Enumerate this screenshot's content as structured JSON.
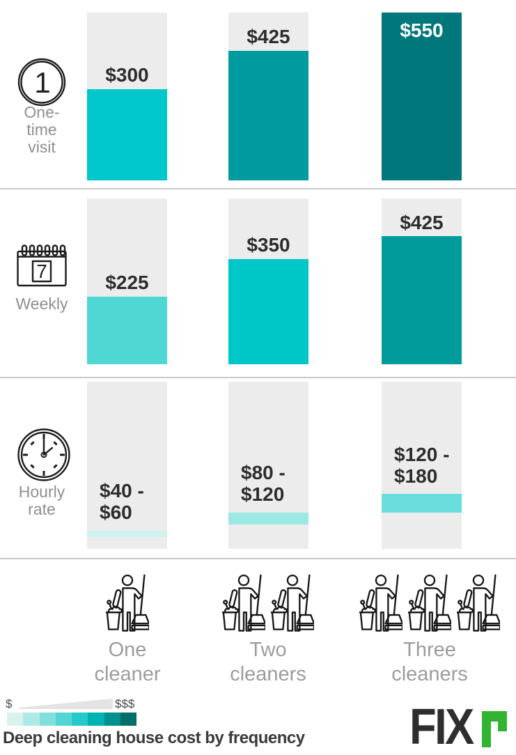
{
  "chart_data": {
    "type": "bar",
    "title": "Deep cleaning house cost by frequency",
    "categories": [
      "One cleaner",
      "Two cleaners",
      "Three cleaners"
    ],
    "value_axis_max": 550,
    "grid": false,
    "legend": {
      "low": "$",
      "high": "$$$",
      "position": "bottom-left"
    },
    "series": [
      {
        "name": "One-time visit",
        "values": [
          300,
          425,
          550
        ],
        "labels": [
          "$300",
          "$425",
          "$550"
        ]
      },
      {
        "name": "Weekly",
        "values": [
          225,
          350,
          425
        ],
        "labels": [
          "$225",
          "$350",
          "$425"
        ]
      },
      {
        "name": "Hourly rate",
        "ranges": [
          [
            40,
            60
          ],
          [
            80,
            120
          ],
          [
            120,
            180
          ]
        ],
        "labels": [
          "$40 - $60",
          "$80 - $120",
          "$120 - $180"
        ]
      }
    ]
  },
  "rows": [
    {
      "icon": "one-visit-icon",
      "icon_text": "1",
      "label_lines": [
        "One-",
        "time",
        "visit"
      ],
      "cells": [
        {
          "label_lines": [
            "$300"
          ],
          "value": 300,
          "color": "#00c7cb"
        },
        {
          "label_lines": [
            "$425"
          ],
          "value": 425,
          "color": "#009b9e"
        },
        {
          "label_lines": [
            "$550"
          ],
          "value": 550,
          "color": "#00787b",
          "text_color": "#ffffff",
          "label_inside": true
        }
      ]
    },
    {
      "icon": "calendar-7-icon",
      "icon_text": "7",
      "label_lines": [
        "Weekly"
      ],
      "cells": [
        {
          "label_lines": [
            "$225"
          ],
          "value": 225,
          "color": "#4fd7d4"
        },
        {
          "label_lines": [
            "$350"
          ],
          "value": 350,
          "color": "#00c7c7"
        },
        {
          "label_lines": [
            "$425"
          ],
          "value": 425,
          "color": "#009c9c"
        }
      ]
    },
    {
      "icon": "clock-icon",
      "icon_text": "",
      "label_lines": [
        "Hourly",
        "rate"
      ],
      "cells": [
        {
          "label_lines": [
            "$40 -",
            "$60"
          ],
          "low": 40,
          "high": 60,
          "color": "#cdf2f0"
        },
        {
          "label_lines": [
            "$80 -",
            "$120"
          ],
          "low": 80,
          "high": 120,
          "color": "#9be8e4"
        },
        {
          "label_lines": [
            "$120 -",
            "$180"
          ],
          "low": 120,
          "high": 180,
          "color": "#69dedd"
        }
      ]
    }
  ],
  "columns": [
    {
      "label_lines": [
        "One",
        "cleaner"
      ],
      "cleaners": 1
    },
    {
      "label_lines": [
        "Two",
        "cleaners"
      ],
      "cleaners": 2
    },
    {
      "label_lines": [
        "Three",
        "cleaners"
      ],
      "cleaners": 3
    }
  ],
  "legend": {
    "low_label": "$",
    "high_label": "$$$",
    "swatches": [
      "#d8f3ee",
      "#b0eae5",
      "#81e0dd",
      "#52d6d3",
      "#25c9c7",
      "#00b3b3",
      "#00908e",
      "#006f6b"
    ]
  },
  "title": "Deep cleaning house cost by frequency",
  "brand": {
    "logo_fix": "FIX",
    "logo_r": "r",
    "green": "#32b432",
    "dark": "#2e2e2e"
  }
}
